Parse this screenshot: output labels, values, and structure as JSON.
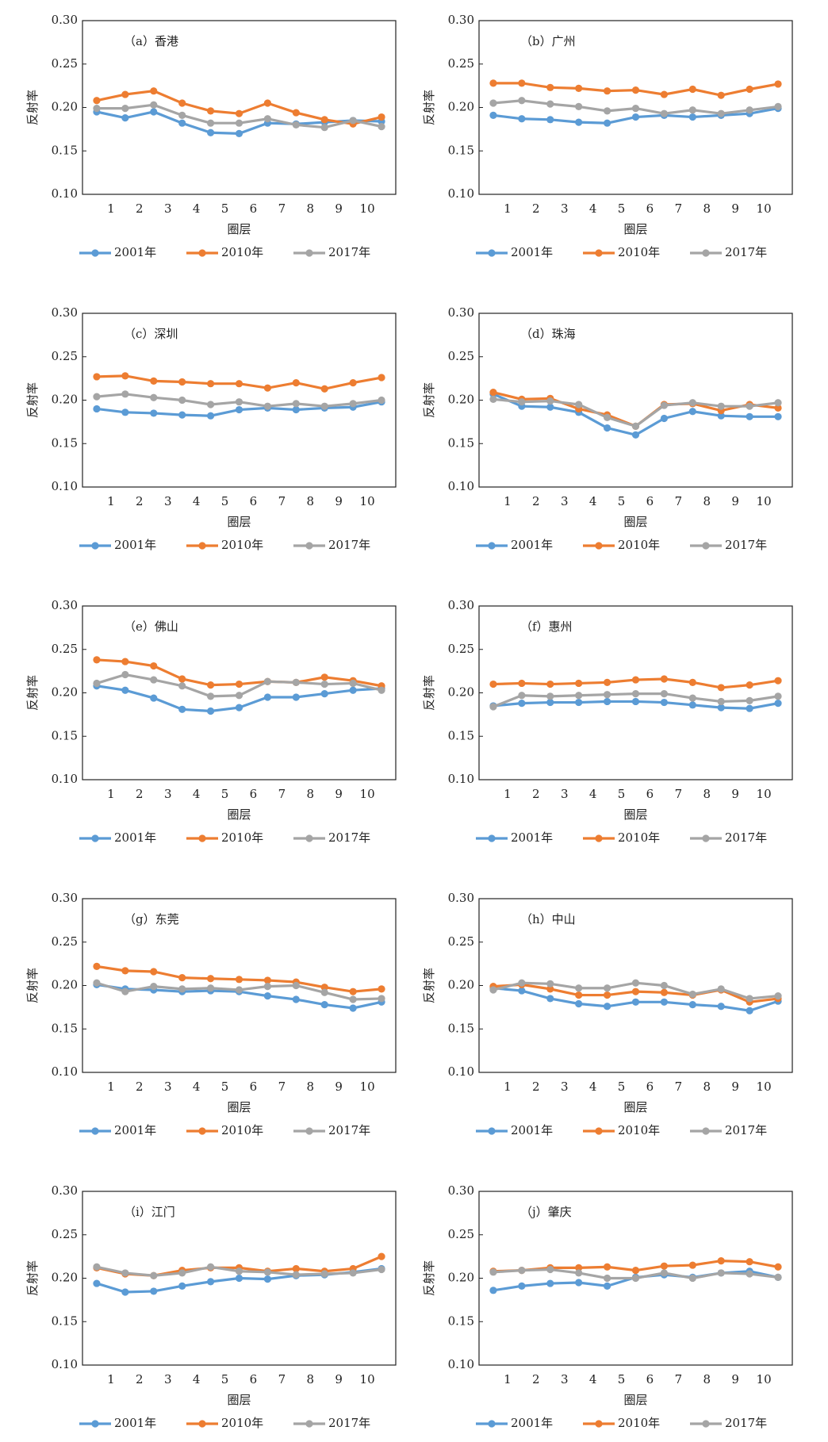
{
  "chart_data": [
    {
      "type": "line",
      "title": "（a）香港",
      "x_label": "圈层",
      "y_label": "反射率",
      "x": [
        0.5,
        1.5,
        2.5,
        3.5,
        4.5,
        5.5,
        6.5,
        7.5,
        8.5,
        9.5,
        10.5
      ],
      "xlim": [
        0,
        11
      ],
      "xticks": [
        1,
        2,
        3,
        4,
        5,
        6,
        7,
        8,
        9,
        10
      ],
      "ylim": [
        0.1,
        0.3
      ],
      "yticks": [
        {
          "value": 0.1,
          "label": "0.10"
        },
        0.15,
        {
          "value": 0.2,
          "label": "0.20"
        },
        0.25,
        {
          "value": 0.3,
          "label": "0.30"
        }
      ],
      "legend": "bottom",
      "series": [
        {
          "name": "2001年",
          "color": "#5b9bd5",
          "values": [
            0.195,
            0.188,
            0.195,
            0.182,
            0.171,
            0.17,
            0.182,
            0.181,
            0.183,
            0.185,
            0.184
          ]
        },
        {
          "name": "2010年",
          "color": "#ed7d31",
          "values": [
            0.208,
            0.215,
            0.219,
            0.205,
            0.196,
            0.193,
            0.205,
            0.194,
            0.186,
            0.181,
            0.189
          ]
        },
        {
          "name": "2017年",
          "color": "#a5a5a5",
          "values": [
            0.199,
            0.199,
            0.203,
            0.191,
            0.182,
            0.182,
            0.187,
            0.18,
            0.177,
            0.185,
            0.178
          ]
        }
      ]
    },
    {
      "type": "line",
      "title": "（b）广州",
      "x_label": "圈层",
      "y_label": "反射率",
      "x": [
        0.5,
        1.5,
        2.5,
        3.5,
        4.5,
        5.5,
        6.5,
        7.5,
        8.5,
        9.5,
        10.5
      ],
      "xlim": [
        0,
        11
      ],
      "xticks": [
        1,
        2,
        3,
        4,
        5,
        6,
        7,
        8,
        9,
        10
      ],
      "ylim": [
        0.1,
        0.3
      ],
      "yticks": [
        {
          "value": 0.1,
          "label": "0.10"
        },
        0.15,
        {
          "value": 0.2,
          "label": "0.20"
        },
        0.25,
        {
          "value": 0.3,
          "label": "0.30"
        }
      ],
      "legend": "bottom",
      "series": [
        {
          "name": "2001年",
          "color": "#5b9bd5",
          "values": [
            0.191,
            0.187,
            0.186,
            0.183,
            0.182,
            0.189,
            0.191,
            0.189,
            0.191,
            0.193,
            0.199
          ]
        },
        {
          "name": "2010年",
          "color": "#ed7d31",
          "values": [
            0.228,
            0.228,
            0.223,
            0.222,
            0.219,
            0.22,
            0.215,
            0.221,
            0.214,
            0.221,
            0.227
          ]
        },
        {
          "name": "2017年",
          "color": "#a5a5a5",
          "values": [
            0.205,
            0.208,
            0.204,
            0.201,
            0.196,
            0.199,
            0.193,
            0.197,
            0.193,
            0.197,
            0.201
          ]
        }
      ]
    },
    {
      "type": "line",
      "title": "（c）深圳",
      "x_label": "圈层",
      "y_label": "反射率",
      "x": [
        0.5,
        1.5,
        2.5,
        3.5,
        4.5,
        5.5,
        6.5,
        7.5,
        8.5,
        9.5,
        10.5
      ],
      "xlim": [
        0,
        11
      ],
      "xticks": [
        1,
        2,
        3,
        4,
        5,
        6,
        7,
        8,
        9,
        10
      ],
      "ylim": [
        0.1,
        0.3
      ],
      "yticks": [
        {
          "value": 0.1,
          "label": "0.10"
        },
        0.15,
        {
          "value": 0.2,
          "label": "0.20"
        },
        0.25,
        {
          "value": 0.3,
          "label": "0.30"
        }
      ],
      "legend": "bottom",
      "series": [
        {
          "name": "2001年",
          "color": "#5b9bd5",
          "values": [
            0.19,
            0.186,
            0.185,
            0.183,
            0.182,
            0.189,
            0.191,
            0.189,
            0.191,
            0.192,
            0.198
          ]
        },
        {
          "name": "2010年",
          "color": "#ed7d31",
          "values": [
            0.227,
            0.228,
            0.222,
            0.221,
            0.219,
            0.219,
            0.214,
            0.22,
            0.213,
            0.22,
            0.226
          ]
        },
        {
          "name": "2017年",
          "color": "#a5a5a5",
          "values": [
            0.204,
            0.207,
            0.203,
            0.2,
            0.195,
            0.198,
            0.193,
            0.196,
            0.193,
            0.196,
            0.2
          ]
        }
      ]
    },
    {
      "type": "line",
      "title": "（d）珠海",
      "x_label": "圈层",
      "y_label": "反射率",
      "x": [
        0.5,
        1.5,
        2.5,
        3.5,
        4.5,
        5.5,
        6.5,
        7.5,
        8.5,
        9.5,
        10.5
      ],
      "xlim": [
        0,
        11
      ],
      "xticks": [
        1,
        2,
        3,
        4,
        5,
        6,
        7,
        8,
        9,
        10
      ],
      "ylim": [
        0.1,
        0.3
      ],
      "yticks": [
        {
          "value": 0.1,
          "label": "0.10"
        },
        0.15,
        {
          "value": 0.2,
          "label": "0.20"
        },
        0.25,
        {
          "value": 0.3,
          "label": "0.30"
        }
      ],
      "legend": "bottom",
      "series": [
        {
          "name": "2001年",
          "color": "#5b9bd5",
          "values": [
            0.207,
            0.193,
            0.192,
            0.186,
            0.168,
            0.16,
            0.179,
            0.187,
            0.182,
            0.181,
            0.181
          ]
        },
        {
          "name": "2010年",
          "color": "#ed7d31",
          "values": [
            0.209,
            0.201,
            0.202,
            0.19,
            0.183,
            0.17,
            0.195,
            0.196,
            0.188,
            0.195,
            0.191
          ]
        },
        {
          "name": "2017年",
          "color": "#a5a5a5",
          "values": [
            0.201,
            0.198,
            0.199,
            0.195,
            0.18,
            0.17,
            0.194,
            0.197,
            0.193,
            0.193,
            0.197
          ]
        }
      ]
    },
    {
      "type": "line",
      "title": "（e）佛山",
      "x_label": "圈层",
      "y_label": "反射率",
      "x": [
        0.5,
        1.5,
        2.5,
        3.5,
        4.5,
        5.5,
        6.5,
        7.5,
        8.5,
        9.5,
        10.5
      ],
      "xlim": [
        0,
        11
      ],
      "xticks": [
        1,
        2,
        3,
        4,
        5,
        6,
        7,
        8,
        9,
        10
      ],
      "ylim": [
        0.1,
        0.3
      ],
      "yticks": [
        {
          "value": 0.1,
          "label": "0.10"
        },
        0.15,
        {
          "value": 0.2,
          "label": "0.20"
        },
        0.25,
        {
          "value": 0.3,
          "label": "0.30"
        }
      ],
      "legend": "bottom",
      "series": [
        {
          "name": "2001年",
          "color": "#5b9bd5",
          "values": [
            0.208,
            0.203,
            0.194,
            0.181,
            0.179,
            0.183,
            0.195,
            0.195,
            0.199,
            0.203,
            0.205
          ]
        },
        {
          "name": "2010年",
          "color": "#ed7d31",
          "values": [
            0.238,
            0.236,
            0.231,
            0.216,
            0.209,
            0.21,
            0.213,
            0.212,
            0.218,
            0.214,
            0.208
          ]
        },
        {
          "name": "2017年",
          "color": "#a5a5a5",
          "values": [
            0.211,
            0.221,
            0.215,
            0.208,
            0.196,
            0.197,
            0.213,
            0.212,
            0.21,
            0.211,
            0.203
          ]
        }
      ]
    },
    {
      "type": "line",
      "title": "（f）惠州",
      "x_label": "圈层",
      "y_label": "反射率",
      "x": [
        0.5,
        1.5,
        2.5,
        3.5,
        4.5,
        5.5,
        6.5,
        7.5,
        8.5,
        9.5,
        10.5
      ],
      "xlim": [
        0,
        11
      ],
      "xticks": [
        1,
        2,
        3,
        4,
        5,
        6,
        7,
        8,
        9,
        10
      ],
      "ylim": [
        0.1,
        0.3
      ],
      "yticks": [
        {
          "value": 0.1,
          "label": "0.10"
        },
        0.15,
        {
          "value": 0.2,
          "label": "0.20"
        },
        0.25,
        {
          "value": 0.3,
          "label": "0.30"
        }
      ],
      "legend": "bottom",
      "series": [
        {
          "name": "2001年",
          "color": "#5b9bd5",
          "values": [
            0.185,
            0.188,
            0.189,
            0.189,
            0.19,
            0.19,
            0.189,
            0.186,
            0.183,
            0.182,
            0.188
          ]
        },
        {
          "name": "2010年",
          "color": "#ed7d31",
          "values": [
            0.21,
            0.211,
            0.21,
            0.211,
            0.212,
            0.215,
            0.216,
            0.212,
            0.206,
            0.209,
            0.214
          ]
        },
        {
          "name": "2017年",
          "color": "#a5a5a5",
          "values": [
            0.184,
            0.197,
            0.196,
            0.197,
            0.198,
            0.199,
            0.199,
            0.194,
            0.19,
            0.191,
            0.196
          ]
        }
      ]
    },
    {
      "type": "line",
      "title": "（g）东莞",
      "x_label": "圈层",
      "y_label": "反射率",
      "x": [
        0.5,
        1.5,
        2.5,
        3.5,
        4.5,
        5.5,
        6.5,
        7.5,
        8.5,
        9.5,
        10.5
      ],
      "xlim": [
        0,
        11
      ],
      "xticks": [
        1,
        2,
        3,
        4,
        5,
        6,
        7,
        8,
        9,
        10
      ],
      "ylim": [
        0.1,
        0.3
      ],
      "yticks": [
        {
          "value": 0.1,
          "label": "0.10"
        },
        0.15,
        {
          "value": 0.2,
          "label": "0.20"
        },
        0.25,
        {
          "value": 0.3,
          "label": "0.30"
        }
      ],
      "legend": "bottom",
      "series": [
        {
          "name": "2001年",
          "color": "#5b9bd5",
          "values": [
            0.201,
            0.196,
            0.195,
            0.193,
            0.194,
            0.193,
            0.188,
            0.184,
            0.178,
            0.174,
            0.181
          ]
        },
        {
          "name": "2010年",
          "color": "#ed7d31",
          "values": [
            0.222,
            0.217,
            0.216,
            0.209,
            0.208,
            0.207,
            0.206,
            0.204,
            0.198,
            0.193,
            0.196
          ]
        },
        {
          "name": "2017年",
          "color": "#a5a5a5",
          "values": [
            0.203,
            0.193,
            0.199,
            0.196,
            0.197,
            0.195,
            0.199,
            0.2,
            0.192,
            0.184,
            0.185
          ]
        }
      ]
    },
    {
      "type": "line",
      "title": "（h）中山",
      "x_label": "圈层",
      "y_label": "反射率",
      "x": [
        0.5,
        1.5,
        2.5,
        3.5,
        4.5,
        5.5,
        6.5,
        7.5,
        8.5,
        9.5,
        10.5
      ],
      "xlim": [
        0,
        11
      ],
      "xticks": [
        1,
        2,
        3,
        4,
        5,
        6,
        7,
        8,
        9,
        10
      ],
      "ylim": [
        0.1,
        0.3
      ],
      "yticks": [
        {
          "value": 0.1,
          "label": "0.10"
        },
        0.15,
        {
          "value": 0.2,
          "label": "0.20"
        },
        0.25,
        {
          "value": 0.3,
          "label": "0.30"
        }
      ],
      "legend": "bottom",
      "series": [
        {
          "name": "2001年",
          "color": "#5b9bd5",
          "values": [
            0.197,
            0.194,
            0.185,
            0.179,
            0.176,
            0.181,
            0.181,
            0.178,
            0.176,
            0.171,
            0.182
          ]
        },
        {
          "name": "2010年",
          "color": "#ed7d31",
          "values": [
            0.199,
            0.201,
            0.196,
            0.189,
            0.189,
            0.193,
            0.192,
            0.189,
            0.195,
            0.181,
            0.185
          ]
        },
        {
          "name": "2017年",
          "color": "#a5a5a5",
          "values": [
            0.195,
            0.203,
            0.202,
            0.197,
            0.197,
            0.203,
            0.2,
            0.19,
            0.196,
            0.185,
            0.188
          ]
        }
      ]
    },
    {
      "type": "line",
      "title": "（i）江门",
      "x_label": "圈层",
      "y_label": "反射率",
      "x": [
        0.5,
        1.5,
        2.5,
        3.5,
        4.5,
        5.5,
        6.5,
        7.5,
        8.5,
        9.5,
        10.5
      ],
      "xlim": [
        0,
        11
      ],
      "xticks": [
        1,
        2,
        3,
        4,
        5,
        6,
        7,
        8,
        9,
        10
      ],
      "ylim": [
        0.1,
        0.3
      ],
      "yticks": [
        {
          "value": 0.1,
          "label": "0.10"
        },
        0.15,
        {
          "value": 0.2,
          "label": "0.20"
        },
        0.25,
        {
          "value": 0.3,
          "label": "0.30"
        }
      ],
      "legend": "bottom",
      "series": [
        {
          "name": "2001年",
          "color": "#5b9bd5",
          "values": [
            0.194,
            0.184,
            0.185,
            0.191,
            0.196,
            0.2,
            0.199,
            0.203,
            0.204,
            0.207,
            0.211
          ]
        },
        {
          "name": "2010年",
          "color": "#ed7d31",
          "values": [
            0.212,
            0.205,
            0.203,
            0.209,
            0.212,
            0.212,
            0.208,
            0.211,
            0.208,
            0.211,
            0.225
          ]
        },
        {
          "name": "2017年",
          "color": "#a5a5a5",
          "values": [
            0.213,
            0.206,
            0.203,
            0.206,
            0.213,
            0.208,
            0.207,
            0.204,
            0.205,
            0.206,
            0.21
          ]
        }
      ]
    },
    {
      "type": "line",
      "title": "（j）肇庆",
      "x_label": "圈层",
      "y_label": "反射率",
      "x": [
        0.5,
        1.5,
        2.5,
        3.5,
        4.5,
        5.5,
        6.5,
        7.5,
        8.5,
        9.5,
        10.5
      ],
      "xlim": [
        0,
        11
      ],
      "xticks": [
        1,
        2,
        3,
        4,
        5,
        6,
        7,
        8,
        9,
        10
      ],
      "ylim": [
        0.1,
        0.3
      ],
      "yticks": [
        {
          "value": 0.1,
          "label": "0.10"
        },
        0.15,
        {
          "value": 0.2,
          "label": "0.20"
        },
        0.25,
        {
          "value": 0.3,
          "label": "0.30"
        }
      ],
      "legend": "bottom",
      "series": [
        {
          "name": "2001年",
          "color": "#5b9bd5",
          "values": [
            0.186,
            0.191,
            0.194,
            0.195,
            0.191,
            0.201,
            0.204,
            0.201,
            0.206,
            0.208,
            0.201
          ]
        },
        {
          "name": "2010年",
          "color": "#ed7d31",
          "values": [
            0.208,
            0.209,
            0.212,
            0.212,
            0.213,
            0.209,
            0.214,
            0.215,
            0.22,
            0.219,
            0.213
          ]
        },
        {
          "name": "2017年",
          "color": "#a5a5a5",
          "values": [
            0.207,
            0.209,
            0.21,
            0.206,
            0.2,
            0.2,
            0.206,
            0.2,
            0.206,
            0.205,
            0.201
          ]
        }
      ]
    }
  ]
}
